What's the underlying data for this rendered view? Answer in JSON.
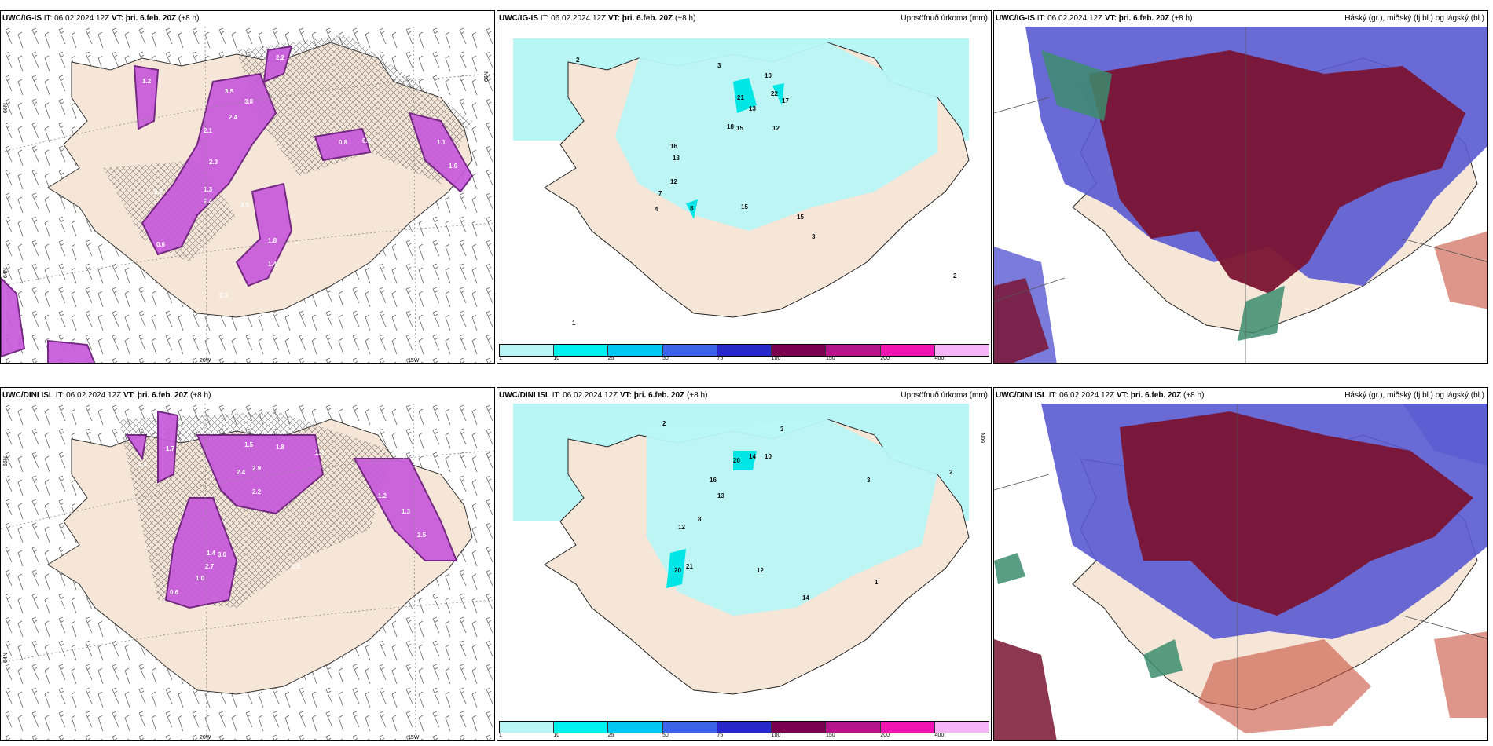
{
  "rows": [
    {
      "model": "UWC/IG-IS",
      "it": "IT: 06.02.2024 12Z",
      "vt_label": "VT:",
      "vt": "þri. 6.feb. 20Z",
      "lead": "(+8 h)"
    },
    {
      "model": "UWC/DINI ISL",
      "it": "IT: 06.02.2024 12Z",
      "vt_label": "VT:",
      "vt": "þri. 6.feb. 20Z",
      "lead": "(+8 h)"
    }
  ],
  "panel_titles": {
    "precip": "Uppsöfnuð úrkoma (mm)",
    "cloud": "Háský (gr.), miðský (fj.bl.) og lágský (bl.)"
  },
  "axis_labels": {
    "lon_20w": "20W",
    "lon_15w": "15W",
    "lat_66n": "66N",
    "lat_64n": "64N"
  },
  "precip_legend": {
    "colors": [
      "#b8f5f5",
      "#00f0f0",
      "#00c8f0",
      "#3c64e6",
      "#2828c8",
      "#780050",
      "#b4148c",
      "#f014b4",
      "#f5b4f5"
    ],
    "ticks": [
      "1",
      "10",
      "25",
      "50",
      "75",
      "100",
      "150",
      "200",
      "400"
    ]
  },
  "colors": {
    "land": "#f5e6d8",
    "icing": "#c85adc",
    "precip_light": "#b8f5f5",
    "precip_mid": "#00e6e6",
    "cloud_high": "#3c8c6e",
    "cloud_mid": "#5a5ad2",
    "cloud_low": "#7a1432"
  },
  "icing_values_top": [
    "2.2",
    "1.2",
    "3.5",
    "3.8",
    "2.4",
    "2.1",
    "2.3",
    "1.3",
    "2.4",
    "3.5",
    "2.8",
    "1.8",
    "1.4",
    "0.6",
    "0.8",
    "0.6",
    "1.1",
    "1.0",
    "0.3",
    "0.4"
  ],
  "icing_values_bottom": [
    "1.7",
    "1.5",
    "1.8",
    "2.4",
    "2.9",
    "2.2",
    "1.4",
    "2.7",
    "3.0",
    "1.0",
    "0.6",
    "1.2",
    "1.3",
    "1.9",
    "2.5",
    "0.5",
    "1.5"
  ],
  "precip_values_top": [
    "2",
    "3",
    "10",
    "21",
    "13",
    "22",
    "17",
    "18",
    "15",
    "12",
    "16",
    "13",
    "12",
    "7",
    "4",
    "8",
    "15",
    "15",
    "3",
    "2",
    "1"
  ],
  "precip_values_bottom": [
    "2",
    "3",
    "20",
    "14",
    "10",
    "16",
    "13",
    "8",
    "12",
    "21",
    "20",
    "12",
    "14",
    "3",
    "2",
    "1"
  ]
}
